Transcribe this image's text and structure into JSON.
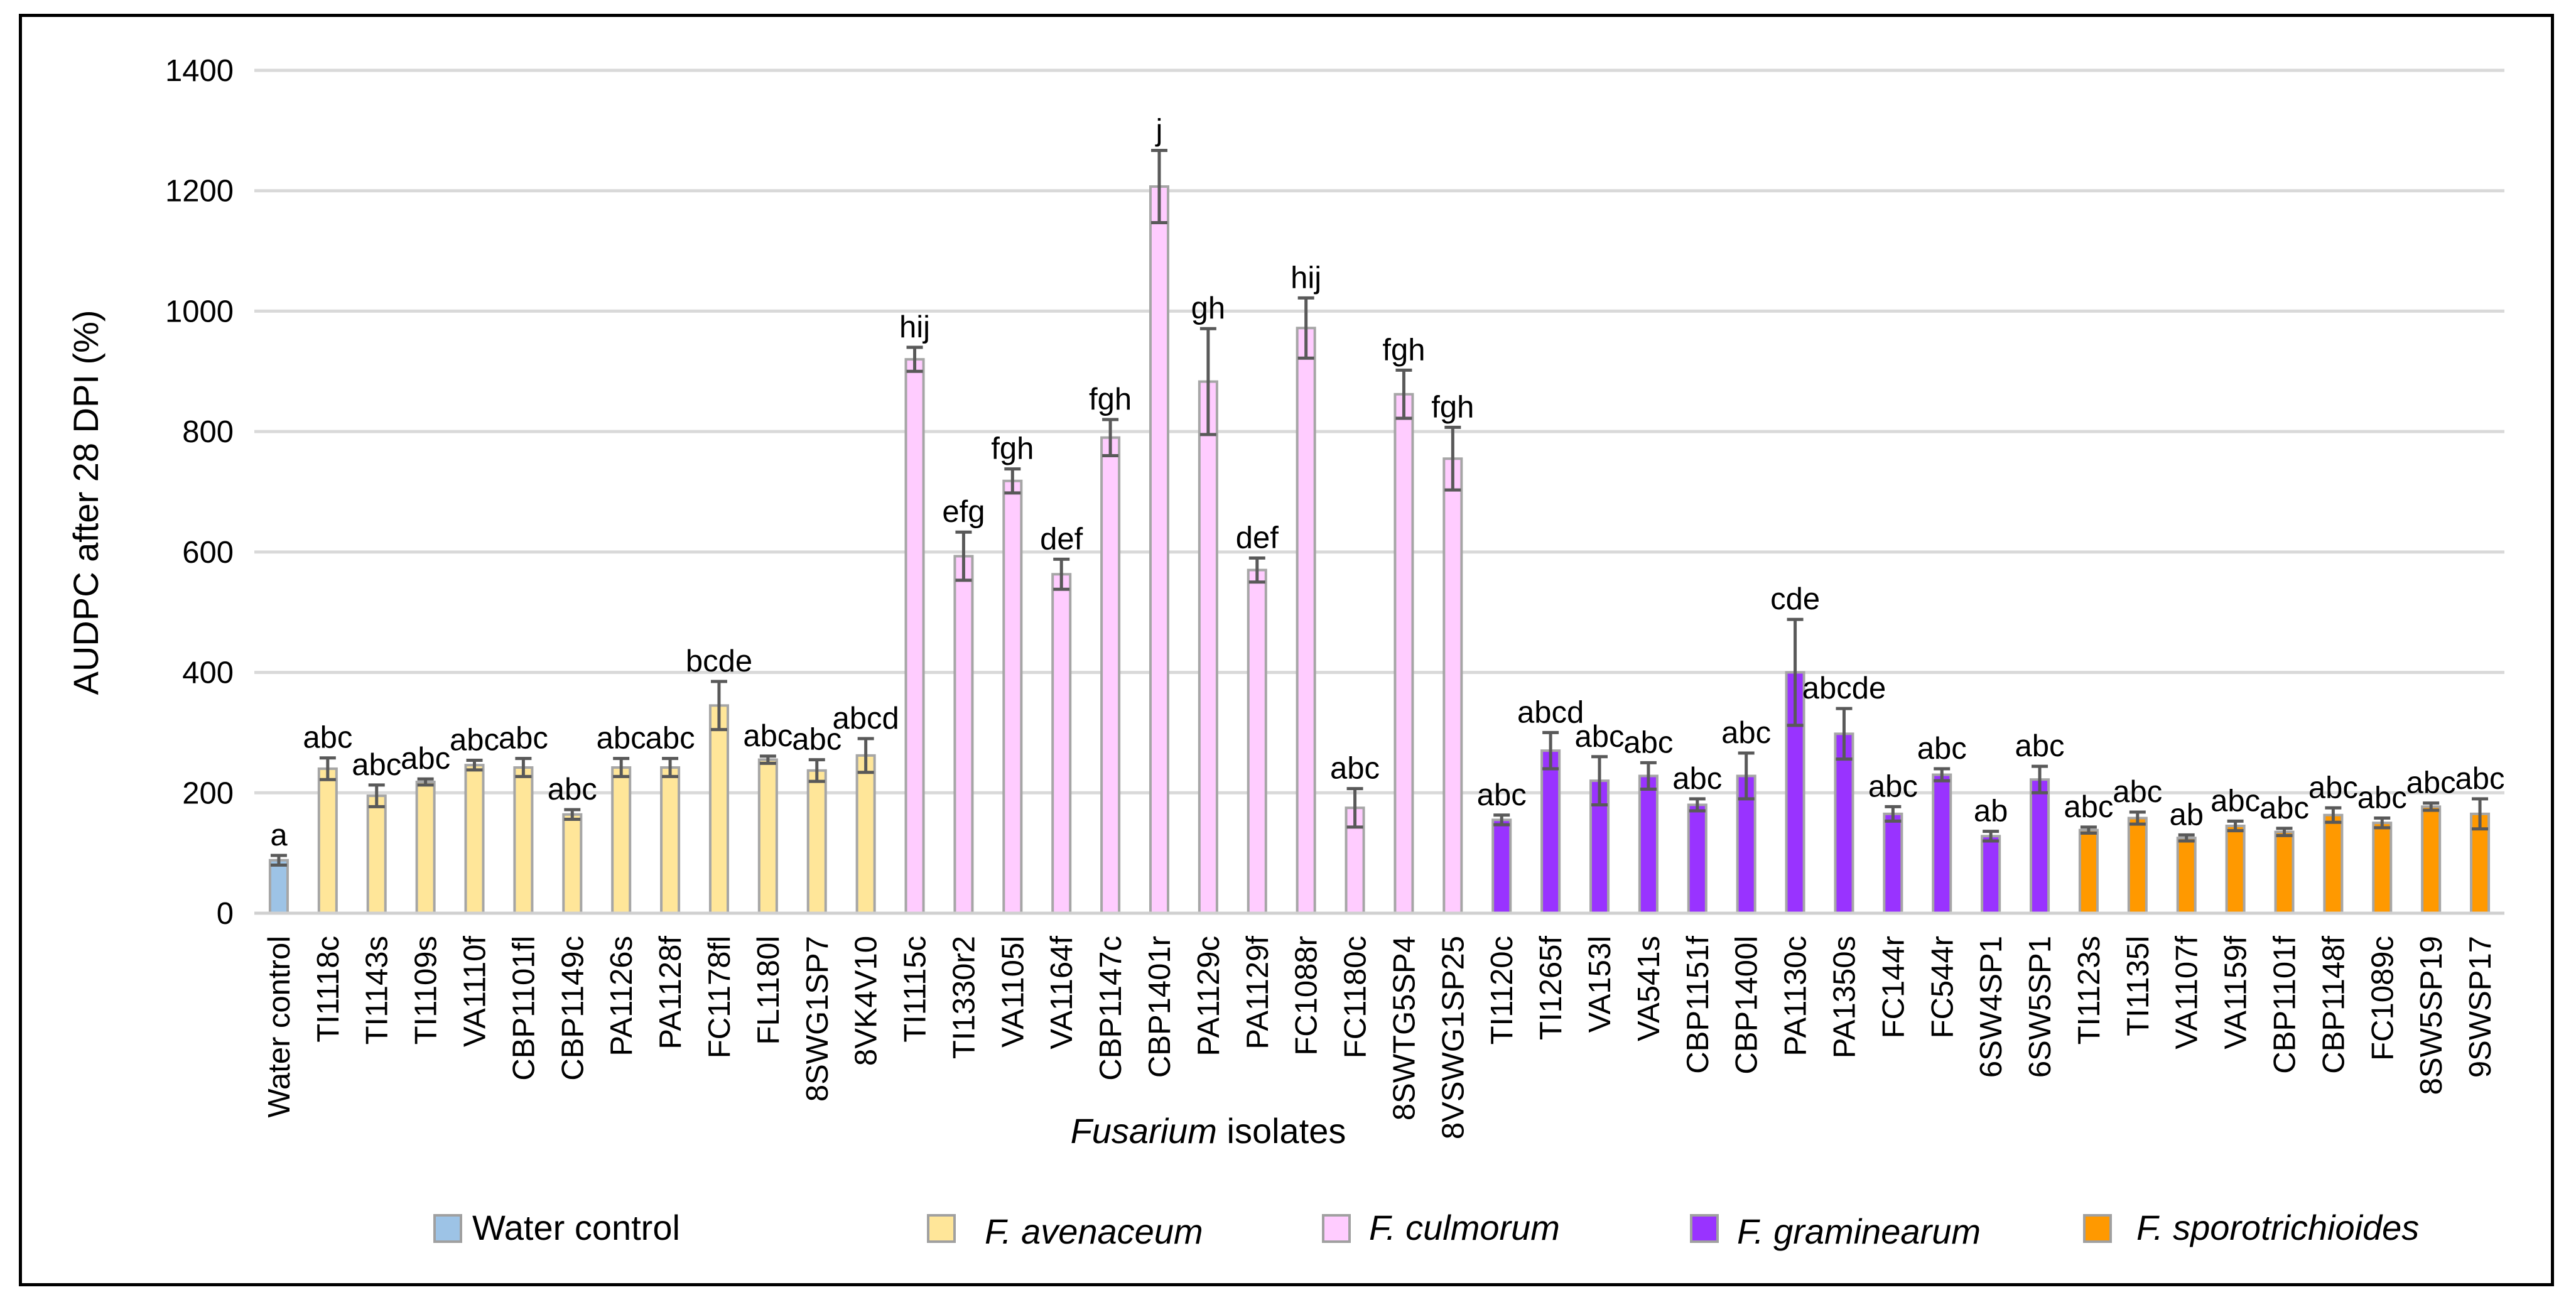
{
  "chart_data": {
    "type": "bar",
    "title": "",
    "xlabel_italic": "Fusarium",
    "xlabel_rest": " isolates",
    "ylabel": "AUDPC after 28 DPI (%)",
    "ylim": [
      0,
      1400
    ],
    "yticks": [
      0,
      200,
      400,
      600,
      800,
      1000,
      1200,
      1400
    ],
    "grid": true,
    "legend_position": "bottom",
    "groups": [
      {
        "name": "Water control",
        "italic": false,
        "color": "#9DC3E6"
      },
      {
        "name": "F. avenaceum",
        "italic": true,
        "color": "#FFE699"
      },
      {
        "name": "F. culmorum",
        "italic": true,
        "color": "#FFCCFF"
      },
      {
        "name": "F. graminearum",
        "italic": true,
        "color": "#9933FF"
      },
      {
        "name": "F. sporotrichioides",
        "italic": true,
        "color": "#FF9900"
      }
    ],
    "bars": [
      {
        "label": "Water control",
        "group": 0,
        "value": 88,
        "error": 8,
        "sig": "a"
      },
      {
        "label": "TI1118c",
        "group": 1,
        "value": 240,
        "error": 18,
        "sig": "abc"
      },
      {
        "label": "TI1143s",
        "group": 1,
        "value": 195,
        "error": 18,
        "sig": "abc"
      },
      {
        "label": "TI1109s",
        "group": 1,
        "value": 218,
        "error": 5,
        "sig": "abc"
      },
      {
        "label": "VA1110f",
        "group": 1,
        "value": 246,
        "error": 8,
        "sig": "abc"
      },
      {
        "label": "CBP1101fl",
        "group": 1,
        "value": 242,
        "error": 15,
        "sig": "abc"
      },
      {
        "label": "CBP1149c",
        "group": 1,
        "value": 164,
        "error": 8,
        "sig": "abc"
      },
      {
        "label": "PA1126s",
        "group": 1,
        "value": 242,
        "error": 15,
        "sig": "abc"
      },
      {
        "label": "PA1128f",
        "group": 1,
        "value": 242,
        "error": 15,
        "sig": "abc"
      },
      {
        "label": "FC1178fl",
        "group": 1,
        "value": 345,
        "error": 40,
        "sig": "bcde"
      },
      {
        "label": "FL1180l",
        "group": 1,
        "value": 255,
        "error": 6,
        "sig": "abc"
      },
      {
        "label": "8SWG1SP7",
        "group": 1,
        "value": 237,
        "error": 18,
        "sig": "abc"
      },
      {
        "label": "8VK4V10",
        "group": 1,
        "value": 262,
        "error": 28,
        "sig": "abcd"
      },
      {
        "label": "TI1115c",
        "group": 2,
        "value": 920,
        "error": 20,
        "sig": "hij"
      },
      {
        "label": "TI1330r2",
        "group": 2,
        "value": 593,
        "error": 40,
        "sig": "efg"
      },
      {
        "label": "VA1105l",
        "group": 2,
        "value": 718,
        "error": 20,
        "sig": "fgh"
      },
      {
        "label": "VA1164f",
        "group": 2,
        "value": 563,
        "error": 25,
        "sig": "def"
      },
      {
        "label": "CBP1147c",
        "group": 2,
        "value": 790,
        "error": 30,
        "sig": "fgh"
      },
      {
        "label": "CBP1401r",
        "group": 2,
        "value": 1207,
        "error": 60,
        "sig": "j"
      },
      {
        "label": "PA1129c",
        "group": 2,
        "value": 883,
        "error": 88,
        "sig": "gh"
      },
      {
        "label": "PA1129f",
        "group": 2,
        "value": 570,
        "error": 20,
        "sig": "def"
      },
      {
        "label": "FC1088r",
        "group": 2,
        "value": 972,
        "error": 50,
        "sig": "hij"
      },
      {
        "label": "FC1180c",
        "group": 2,
        "value": 175,
        "error": 32,
        "sig": "abc"
      },
      {
        "label": "8SWTG5SP4",
        "group": 2,
        "value": 862,
        "error": 40,
        "sig": "fgh"
      },
      {
        "label": "8VSWG1SP25",
        "group": 2,
        "value": 755,
        "error": 52,
        "sig": "fgh"
      },
      {
        "label": "TI1120c",
        "group": 3,
        "value": 155,
        "error": 8,
        "sig": "abc"
      },
      {
        "label": "TI1265f",
        "group": 3,
        "value": 270,
        "error": 30,
        "sig": "abcd"
      },
      {
        "label": "VA153l",
        "group": 3,
        "value": 220,
        "error": 40,
        "sig": "abc"
      },
      {
        "label": "VA541s",
        "group": 3,
        "value": 228,
        "error": 22,
        "sig": "abc"
      },
      {
        "label": "CBP1151f",
        "group": 3,
        "value": 180,
        "error": 10,
        "sig": "abc"
      },
      {
        "label": "CBP1400l",
        "group": 3,
        "value": 228,
        "error": 38,
        "sig": "abc"
      },
      {
        "label": "PA1130c",
        "group": 3,
        "value": 400,
        "error": 88,
        "sig": "cde"
      },
      {
        "label": "PA1350s",
        "group": 3,
        "value": 298,
        "error": 42,
        "sig": "abcde"
      },
      {
        "label": "FC144r",
        "group": 3,
        "value": 165,
        "error": 12,
        "sig": "abc"
      },
      {
        "label": "FC544r",
        "group": 3,
        "value": 230,
        "error": 10,
        "sig": "abc"
      },
      {
        "label": "6SW4SP1",
        "group": 3,
        "value": 128,
        "error": 8,
        "sig": "ab"
      },
      {
        "label": "6SW5SP1",
        "group": 3,
        "value": 222,
        "error": 22,
        "sig": "abc"
      },
      {
        "label": "TI1123s",
        "group": 4,
        "value": 138,
        "error": 5,
        "sig": "abc"
      },
      {
        "label": "TI1135l",
        "group": 4,
        "value": 158,
        "error": 10,
        "sig": "abc"
      },
      {
        "label": "VA1107f",
        "group": 4,
        "value": 125,
        "error": 5,
        "sig": "ab"
      },
      {
        "label": "VA1159f",
        "group": 4,
        "value": 145,
        "error": 8,
        "sig": "abc"
      },
      {
        "label": "CBP1101f",
        "group": 4,
        "value": 135,
        "error": 6,
        "sig": "abc"
      },
      {
        "label": "CBP1148f",
        "group": 4,
        "value": 163,
        "error": 12,
        "sig": "abc"
      },
      {
        "label": "FC1089c",
        "group": 4,
        "value": 150,
        "error": 8,
        "sig": "abc"
      },
      {
        "label": "8SW5SP19",
        "group": 4,
        "value": 177,
        "error": 6,
        "sig": "abc"
      },
      {
        "label": "9SWSP17",
        "group": 4,
        "value": 165,
        "error": 25,
        "sig": "abc"
      }
    ]
  }
}
